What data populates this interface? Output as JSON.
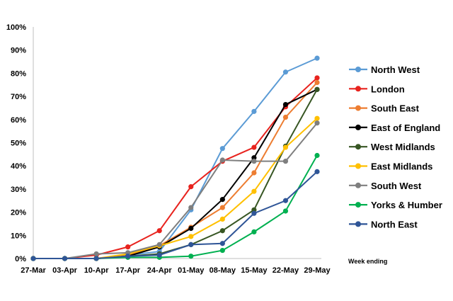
{
  "chart_data": {
    "type": "line",
    "x": [
      "27-Mar",
      "03-Apr",
      "10-Apr",
      "17-Apr",
      "24-Apr",
      "01-May",
      "08-May",
      "15-May",
      "22-May",
      "29-May"
    ],
    "y_ticks": [
      "0%",
      "10%",
      "20%",
      "30%",
      "40%",
      "50%",
      "60%",
      "70%",
      "80%",
      "90%",
      "100%"
    ],
    "ylim": [
      0,
      100
    ],
    "grid": false,
    "legend_position": "right",
    "x_note": "Week ending",
    "series": [
      {
        "name": "North West",
        "color": "#5B9BD5",
        "values": [
          0,
          0,
          0,
          1.5,
          3,
          21,
          47.5,
          63.5,
          80.5,
          86.5
        ]
      },
      {
        "name": "London",
        "color": "#E8231E",
        "values": [
          0,
          0,
          1.5,
          5,
          12,
          31,
          42,
          48,
          65.5,
          78
        ]
      },
      {
        "name": "South East",
        "color": "#ED7D31",
        "values": [
          0,
          0,
          0,
          1.5,
          5.5,
          13.5,
          22,
          37,
          61,
          76
        ]
      },
      {
        "name": "East of England",
        "color": "#000000",
        "values": [
          0,
          0,
          0,
          1,
          5,
          13,
          25.5,
          43.5,
          66.5,
          73
        ]
      },
      {
        "name": "West Midlands",
        "color": "#375623",
        "values": [
          0,
          0,
          0,
          1,
          2,
          6,
          12,
          21,
          48.5,
          73
        ]
      },
      {
        "name": "East Midlands",
        "color": "#FFC000",
        "values": [
          0,
          0,
          0,
          2,
          5.5,
          9.5,
          17,
          29,
          48,
          60.5
        ]
      },
      {
        "name": "South West",
        "color": "#7F7F7F",
        "values": [
          0,
          0,
          2,
          2.5,
          6,
          22,
          42.5,
          42,
          42,
          58.5
        ]
      },
      {
        "name": "Yorks & Humber",
        "color": "#00B050",
        "values": [
          0,
          0,
          0,
          0.5,
          0.5,
          1,
          3.5,
          11.5,
          20.5,
          44.5
        ]
      },
      {
        "name": "North East",
        "color": "#2F5597",
        "values": [
          0,
          0,
          0,
          1,
          1.5,
          6,
          6.5,
          19.5,
          25,
          37.5
        ]
      }
    ]
  }
}
